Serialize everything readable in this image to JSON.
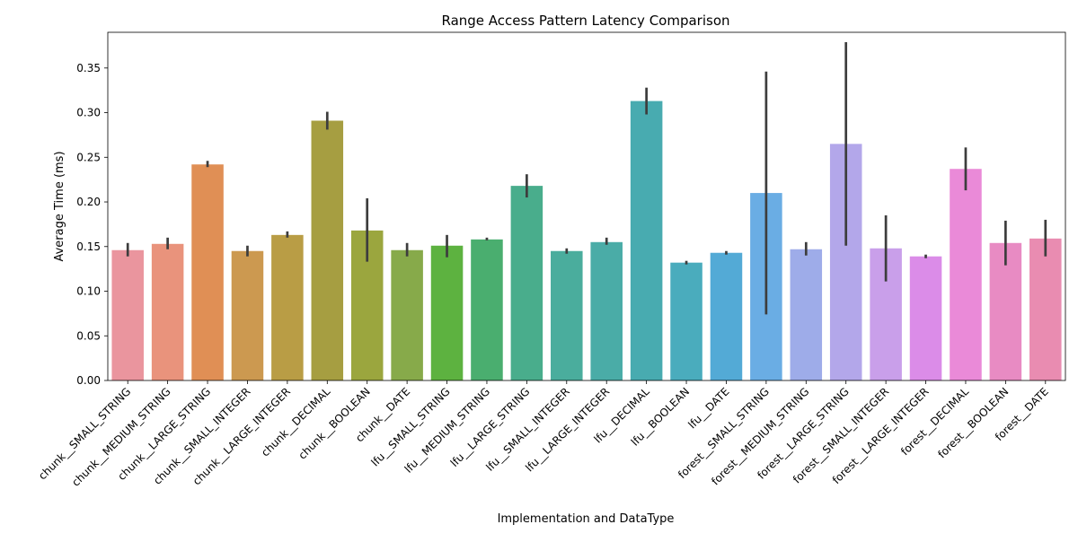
{
  "chart_data": {
    "type": "bar",
    "title": "Range Access Pattern Latency Comparison",
    "xlabel": "Implementation and DataType",
    "ylabel": "Average Time (ms)",
    "ylim": [
      0,
      0.39
    ],
    "yticks": [
      "0.00",
      "0.05",
      "0.10",
      "0.15",
      "0.20",
      "0.25",
      "0.30",
      "0.35"
    ],
    "grid": false,
    "legend": "none",
    "categories": [
      "chunk__SMALL_STRING",
      "chunk__MEDIUM_STRING",
      "chunk__LARGE_STRING",
      "chunk__SMALL_INTEGER",
      "chunk__LARGE_INTEGER",
      "chunk__DECIMAL",
      "chunk__BOOLEAN",
      "chunk__DATE",
      "lfu__SMALL_STRING",
      "lfu__MEDIUM_STRING",
      "lfu__LARGE_STRING",
      "lfu__SMALL_INTEGER",
      "lfu__LARGE_INTEGER",
      "lfu__DECIMAL",
      "lfu__BOOLEAN",
      "lfu__DATE",
      "forest__SMALL_STRING",
      "forest__MEDIUM_STRING",
      "forest__LARGE_STRING",
      "forest__SMALL_INTEGER",
      "forest__LARGE_INTEGER",
      "forest__DECIMAL",
      "forest__BOOLEAN",
      "forest__DATE"
    ],
    "values": [
      0.146,
      0.153,
      0.242,
      0.145,
      0.163,
      0.291,
      0.168,
      0.146,
      0.151,
      0.158,
      0.218,
      0.145,
      0.155,
      0.313,
      0.132,
      0.143,
      0.21,
      0.147,
      0.265,
      0.148,
      0.139,
      0.237,
      0.154,
      0.159
    ],
    "error_low": [
      0.139,
      0.147,
      0.239,
      0.139,
      0.16,
      0.281,
      0.133,
      0.139,
      0.138,
      0.157,
      0.205,
      0.142,
      0.152,
      0.298,
      0.13,
      0.141,
      0.074,
      0.14,
      0.151,
      0.111,
      0.137,
      0.213,
      0.129,
      0.139
    ],
    "error_high": [
      0.154,
      0.16,
      0.246,
      0.151,
      0.167,
      0.301,
      0.204,
      0.154,
      0.163,
      0.16,
      0.231,
      0.148,
      0.16,
      0.328,
      0.134,
      0.145,
      0.346,
      0.155,
      0.379,
      0.185,
      0.141,
      0.261,
      0.179,
      0.18
    ],
    "colors": [
      "#ea959e",
      "#e9937c",
      "#e08f55",
      "#cc9950",
      "#b99d45",
      "#a69e41",
      "#9ba63e",
      "#87aa4a",
      "#5db240",
      "#4aae6f",
      "#49ad8c",
      "#4aad9d",
      "#4aaca7",
      "#48abb0",
      "#4aacbd",
      "#53aad6",
      "#6aade4",
      "#9eace9",
      "#b3a7ea",
      "#c99fea",
      "#db8ce8",
      "#ea8ad8",
      "#e88bc3",
      "#e98cb1"
    ],
    "error_color": "#3d3d3d"
  }
}
